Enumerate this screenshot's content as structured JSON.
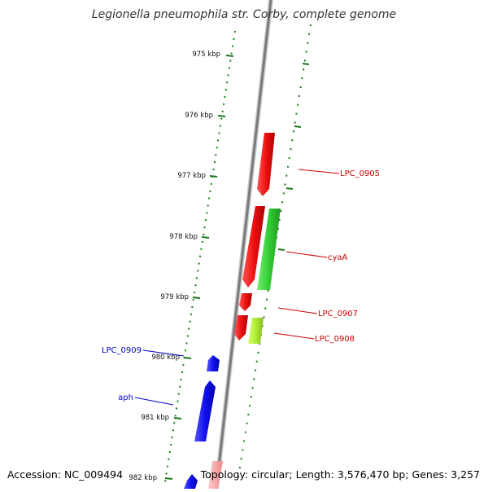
{
  "title": "Legionella pneumophila str. Corby, complete genome",
  "footer": {
    "accession": "Accession: NC_009494",
    "summary": "Topology: circular; Length: 3,576,470 bp; Genes: 3,257"
  },
  "colors": {
    "backbone": "#8a8a8a",
    "tick": "#1a7a1a",
    "forward_gene": "#ee1111",
    "reverse_gene": "#1111ee",
    "forward_label": "#cc0000",
    "reverse_label": "#0000cc",
    "green_gene": "#33cc33",
    "lightgreen_gene": "#aaee33",
    "pink_gene": "#ffaaaa"
  },
  "ticks": [
    {
      "label": "975 kbp"
    },
    {
      "label": "976 kbp"
    },
    {
      "label": "977 kbp"
    },
    {
      "label": "978 kbp"
    },
    {
      "label": "979 kbp"
    },
    {
      "label": "980 kbp"
    },
    {
      "label": "981 kbp"
    },
    {
      "label": "982 kbp"
    }
  ],
  "genes": [
    {
      "name": "LPC_0905",
      "strand": "forward",
      "color": "red"
    },
    {
      "name": "cyaA",
      "strand": "forward",
      "color": "green"
    },
    {
      "name": "LPC_0907",
      "strand": "forward",
      "color": "red"
    },
    {
      "name": "LPC_0908",
      "strand": "forward",
      "color": "lightgreen"
    },
    {
      "name": "LPC_0909",
      "strand": "reverse",
      "color": "blue"
    },
    {
      "name": "aph",
      "strand": "reverse",
      "color": "blue"
    }
  ]
}
